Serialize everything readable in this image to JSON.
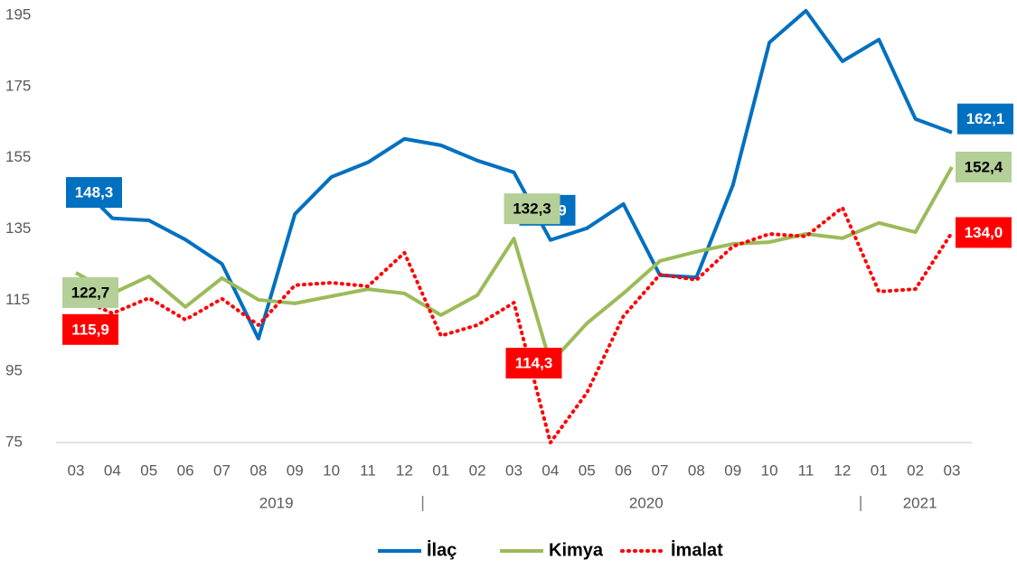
{
  "chart_data": {
    "type": "line",
    "categories": [
      "03",
      "04",
      "05",
      "06",
      "07",
      "08",
      "09",
      "10",
      "11",
      "12",
      "01",
      "02",
      "03",
      "04",
      "05",
      "06",
      "07",
      "08",
      "09",
      "10",
      "11",
      "12",
      "01",
      "02",
      "03"
    ],
    "x_groups": [
      "2019",
      "2020",
      "2021"
    ],
    "ylim": [
      75,
      195
    ],
    "yticks": [
      75,
      95,
      115,
      135,
      155,
      175,
      195
    ],
    "grid": false,
    "legend": "bottom",
    "series": [
      {
        "name": "İlaç",
        "color": "#0070c0",
        "dash": "solid",
        "label_color": "#ffffff",
        "values": [
          148.3,
          138,
          137.4,
          132,
          125.2,
          104.2,
          139.2,
          149.6,
          153.7,
          160.3,
          158.5,
          154.2,
          150.9,
          131.9,
          135.2,
          142,
          122,
          121.4,
          147.3,
          187.4,
          196.3,
          182.1,
          188.2,
          165.9,
          162.1
        ],
        "value_labels": [
          "148,3",
          null,
          null,
          null,
          null,
          null,
          null,
          null,
          null,
          null,
          null,
          null,
          "150,9",
          null,
          null,
          null,
          null,
          null,
          null,
          null,
          null,
          null,
          null,
          null,
          "162,1"
        ]
      },
      {
        "name": "Kimya",
        "color": "#9bbb59",
        "dash": "solid",
        "label_color": "#000000",
        "values": [
          122.7,
          116.9,
          121.7,
          113.1,
          121.2,
          115.1,
          114.1,
          116.1,
          118.1,
          116.9,
          110.8,
          116.4,
          132.3,
          97.3,
          108.5,
          116.9,
          126,
          128.6,
          130.8,
          131.3,
          133.6,
          132.4,
          136.7,
          134.1,
          152.4
        ],
        "value_labels": [
          "122,7",
          null,
          null,
          null,
          null,
          null,
          null,
          null,
          null,
          null,
          null,
          null,
          "132,3",
          null,
          null,
          null,
          null,
          null,
          null,
          null,
          null,
          null,
          null,
          null,
          "152,4"
        ]
      },
      {
        "name": "İmalat",
        "color": "#ff0000",
        "dash": "dotted",
        "label_color": "#ffffff",
        "values": [
          115.9,
          111.3,
          115.6,
          109.5,
          115.4,
          108,
          119.2,
          119.9,
          118.9,
          128.3,
          105,
          108,
          114.3,
          75,
          89,
          110.5,
          122.2,
          120.7,
          130.1,
          133.6,
          132.9,
          141,
          117.4,
          118.1,
          134
        ],
        "value_labels": [
          "115,9",
          null,
          null,
          null,
          null,
          null,
          null,
          null,
          null,
          null,
          null,
          null,
          "114,3",
          null,
          null,
          null,
          null,
          null,
          null,
          null,
          null,
          null,
          null,
          null,
          "134,0"
        ]
      }
    ]
  }
}
